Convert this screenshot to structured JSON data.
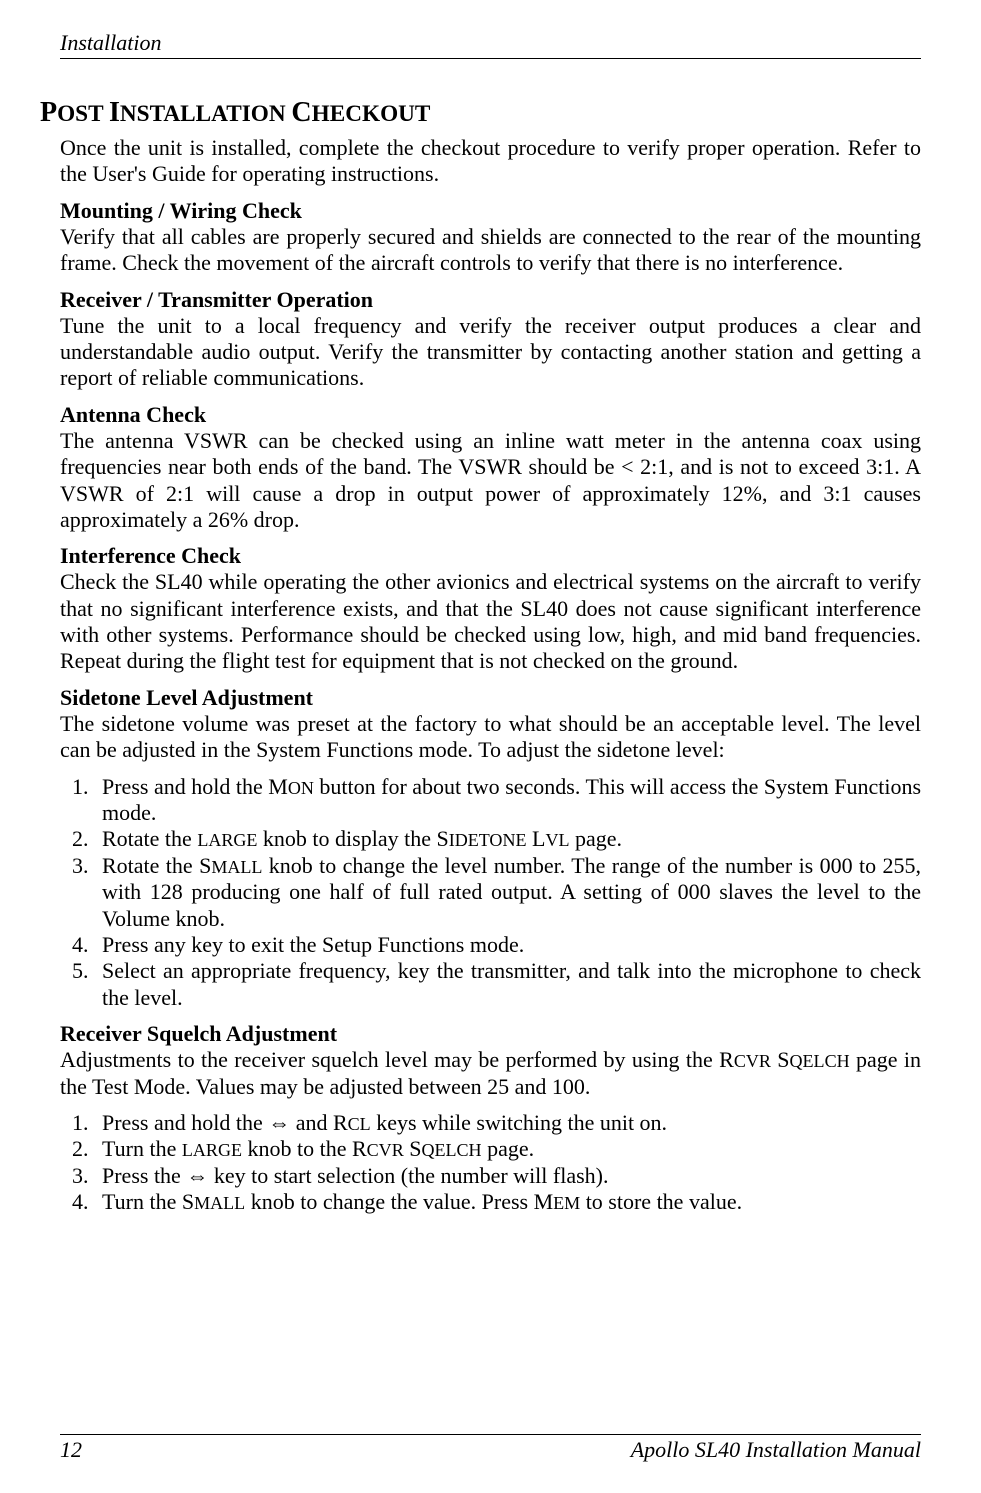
{
  "header": "Installation",
  "mainHeading": "POST INSTALLATION CHECKOUT",
  "intro": "Once the unit is installed, complete the checkout procedure to verify proper operation. Refer to the User's Guide for operating instructions.",
  "sections": {
    "mounting": {
      "title": "Mounting / Wiring Check",
      "text": "Verify that all cables are properly secured and shields are connected to the rear of the mounting frame. Check the movement of the aircraft controls to verify that there is no interference."
    },
    "receiver": {
      "title": "Receiver / Transmitter Operation",
      "text": "Tune the unit to a local frequency and verify the receiver output produces a clear and understandable audio output. Verify the transmitter by contacting another station and getting a report of reliable communications."
    },
    "antenna": {
      "title": "Antenna Check",
      "text": "The antenna VSWR can be checked using an inline watt meter in the antenna coax using frequencies near both ends of the band. The VSWR should be < 2:1, and is not to exceed 3:1. A VSWR of 2:1 will cause a drop in output power of approximately 12%, and 3:1 causes approximately a 26% drop."
    },
    "interference": {
      "title": "Interference Check",
      "text": "Check the SL40 while operating the other avionics and electrical systems on the aircraft to verify that no significant interference exists, and that the SL40 does not cause significant interference with other systems. Performance should be checked using low, high, and mid band frequencies. Repeat during the flight test for equipment that is not checked on the ground."
    },
    "sidetone": {
      "title": "Sidetone Level Adjustment",
      "text": "The sidetone volume was preset at the factory to what should be an acceptable level. The level can be adjusted in the System Functions mode. To adjust the sidetone level:",
      "listItems": {
        "i1a": "Press and hold the M",
        "i1b": " button for about two seconds. This will access the System Functions mode.",
        "i1sc": "ON",
        "i2a": "Rotate the ",
        "i2sc1": "LARGE",
        "i2b": " knob to display the S",
        "i2sc2": "IDETONE",
        "i2c": " L",
        "i2sc3": "VL",
        "i2d": " page.",
        "i3a": "Rotate the S",
        "i3sc": "MALL",
        "i3b": " knob to change the level number. The range of the number is 000 to 255, with 128 producing one half of full rated output. A setting of 000 slaves the level to the Volume knob.",
        "i4": "Press any key to exit the Setup Functions mode.",
        "i5": "Select an appropriate frequency, key the transmitter, and talk into the microphone to check the level."
      }
    },
    "squelch": {
      "title": "Receiver Squelch Adjustment",
      "text1": "Adjustments to the receiver squelch level may be performed by using the R",
      "text1sc": "CVR",
      "text1b": " S",
      "text1sc2": "QELCH",
      "text1c": " page in the Test Mode. Values may be adjusted between 25 and 100.",
      "listItems": {
        "i1a": "Press and hold the ⇔ and R",
        "i1sc": "CL",
        "i1b": " keys while switching the unit on.",
        "i2a": "Turn the ",
        "i2sc1": "LARGE",
        "i2b": " knob to the R",
        "i2sc2": "CVR",
        "i2c": " S",
        "i2sc3": "QELCH",
        "i2d": " page.",
        "i3": "Press the ⇔  key to start selection (the number will flash).",
        "i4a": "Turn the S",
        "i4sc1": "MALL",
        "i4b": " knob to change the value. Press M",
        "i4sc2": "EM",
        "i4c": " to store the value."
      }
    }
  },
  "footer": {
    "pageNum": "12",
    "docTitle": "Apollo SL40 Installation Manual"
  }
}
